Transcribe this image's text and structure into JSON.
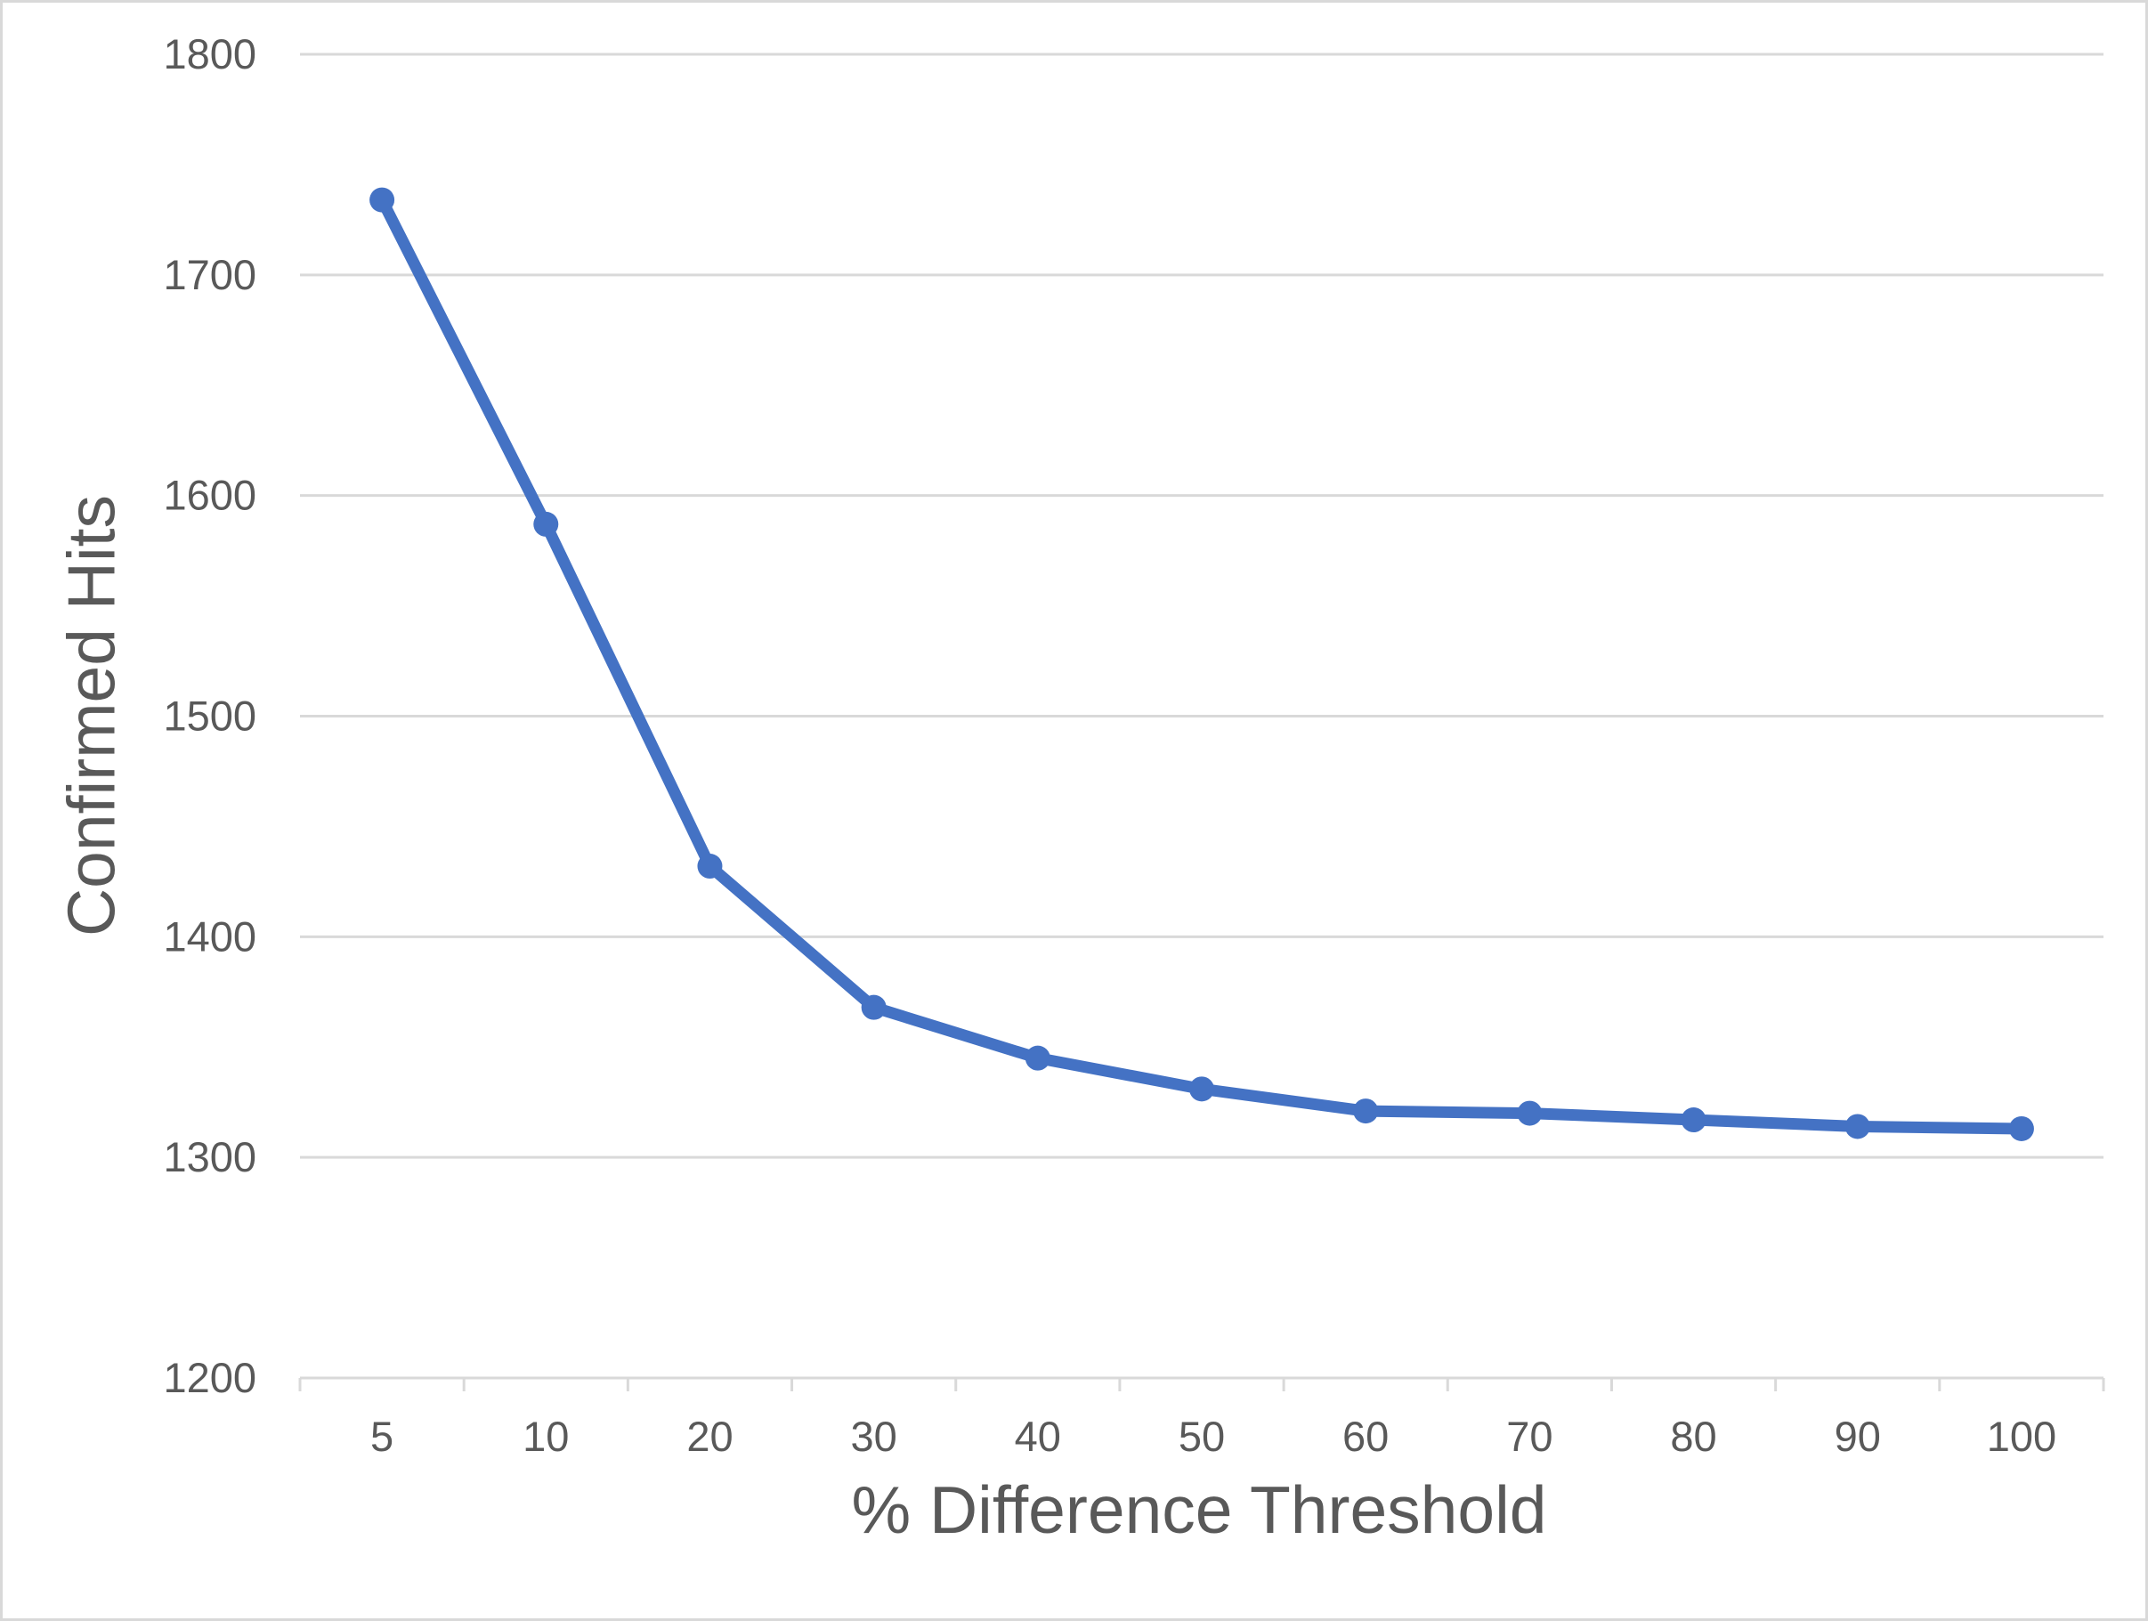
{
  "chart_data": {
    "type": "line",
    "categories": [
      5,
      10,
      20,
      30,
      40,
      50,
      60,
      70,
      80,
      90,
      100
    ],
    "series": [
      {
        "name": "Confirmed Hits",
        "values": [
          1734,
          1587,
          1432,
          1368,
          1345,
          1331,
          1321,
          1320,
          1317,
          1314,
          1313
        ]
      }
    ],
    "title": "",
    "xlabel": "% Difference Threshold",
    "ylabel": "Confirmed Hits",
    "ylim": [
      1200,
      1800
    ],
    "y_ticks": [
      1200,
      1300,
      1400,
      1500,
      1600,
      1700,
      1800
    ],
    "grid": true,
    "legend": false,
    "marker": "circle",
    "line_color": "#4472C4"
  },
  "styles": {
    "background": "#FFFFFF",
    "border_color": "#D9D9D9",
    "grid_color": "#D9D9D9",
    "axis_color": "#D9D9D9",
    "text_color": "#595959"
  }
}
